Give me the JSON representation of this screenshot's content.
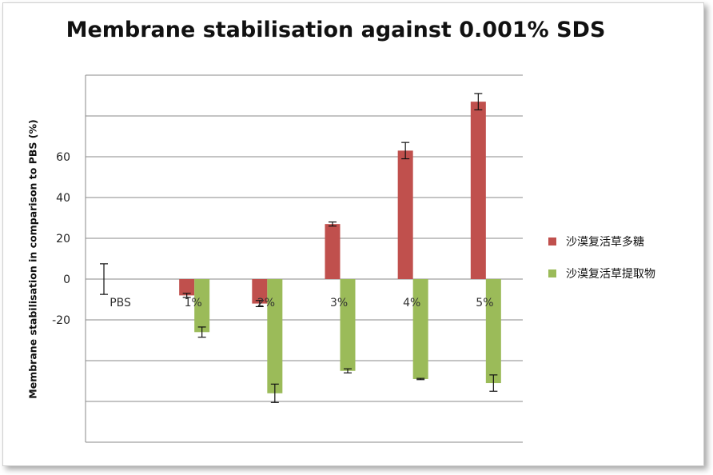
{
  "chart_data": {
    "type": "bar",
    "title": "Membrane stabilisation against 0.001% SDS",
    "xlabel": "",
    "ylabel": "Membrane stabilisation in comparison to PBS (%)",
    "categories": [
      "PBS",
      "1%",
      "2%",
      "3%",
      "4%",
      "5%"
    ],
    "ylim": [
      -80,
      100
    ],
    "yticks": [
      -20,
      0,
      20,
      40,
      60
    ],
    "grid": true,
    "legend_position": "right",
    "series": [
      {
        "name": "沙漠复活草多糖",
        "color": "#c0504d",
        "values": [
          null,
          -8,
          -12,
          27,
          63,
          87
        ],
        "errors": [
          null,
          1,
          1.5,
          1,
          4,
          4
        ]
      },
      {
        "name": "沙漠复活草提取物",
        "color": "#9bbb59",
        "values": [
          0,
          -26,
          -56,
          -45,
          -49,
          -51
        ],
        "errors": [
          7.5,
          2.5,
          4.5,
          1,
          0.3,
          4
        ]
      }
    ]
  }
}
